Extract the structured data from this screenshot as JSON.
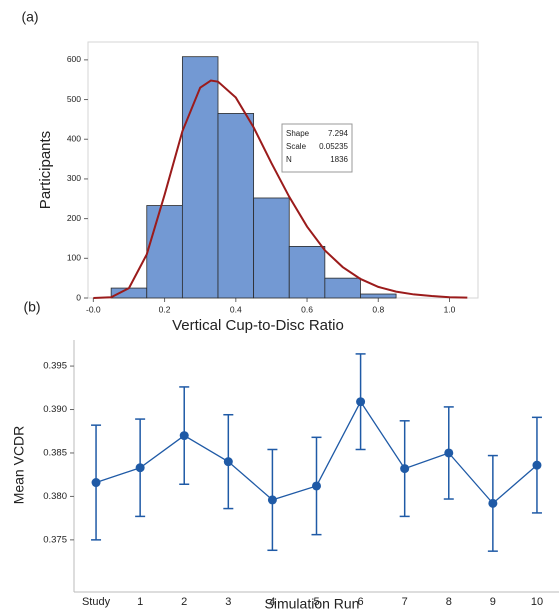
{
  "chart_data": [
    {
      "type": "histogram",
      "panel_label": "(a)",
      "x_label": "Vertical Cup-to-Disc Ratio",
      "y_label": "Participants",
      "bins": [
        0.05,
        0.15,
        0.25,
        0.35,
        0.45,
        0.55,
        0.65,
        0.75,
        0.85
      ],
      "values": [
        25,
        233,
        608,
        465,
        252,
        130,
        50,
        10
      ],
      "color": "#7399d3",
      "curve_color": "#9b1b1b",
      "fit": {
        "x": [
          0.0,
          0.05,
          0.1,
          0.15,
          0.2,
          0.25,
          0.3,
          0.33,
          0.35,
          0.4,
          0.45,
          0.5,
          0.55,
          0.6,
          0.65,
          0.7,
          0.75,
          0.8,
          0.85,
          0.9,
          0.95,
          1.0,
          1.05
        ],
        "y": [
          0,
          2,
          25,
          110,
          260,
          420,
          530,
          548,
          545,
          505,
          430,
          340,
          255,
          180,
          120,
          78,
          48,
          28,
          16,
          9,
          5,
          2,
          1
        ]
      },
      "fit_stats": [
        {
          "name": "Shape",
          "value": 7.294
        },
        {
          "name": "Scale",
          "value": 0.05235
        },
        {
          "name": "N",
          "value": 1836
        }
      ],
      "xlim": [
        -0.015,
        1.08
      ],
      "ylim": [
        0,
        645
      ],
      "xticks": [
        {
          "value": 0,
          "label": "-0.0"
        },
        0.2,
        0.4,
        0.6,
        0.8,
        {
          "value": 1,
          "label": "1.0"
        }
      ],
      "yticks": [
        0,
        100,
        200,
        300,
        400,
        500,
        600
      ]
    },
    {
      "type": "line",
      "panel_label": "(b)",
      "x_label": "Simulation Run",
      "y_label": "Mean VCDR",
      "categories": [
        "Study",
        "1",
        "2",
        "3",
        "4",
        "5",
        "6",
        "7",
        "8",
        "9",
        "10"
      ],
      "values": [
        0.3816,
        0.3833,
        0.387,
        0.384,
        0.3796,
        0.3812,
        0.3909,
        0.3832,
        0.385,
        0.3792,
        0.3836
      ],
      "errors": [
        0.0066,
        0.0056,
        0.0056,
        0.0054,
        0.0058,
        0.0056,
        0.0055,
        0.0055,
        0.0053,
        0.0055,
        0.0055
      ],
      "color": "#1f5aa6",
      "ylim": [
        0.369,
        0.398
      ],
      "yticks": [
        0.375,
        {
          "value": 0.38,
          "label": "0.380"
        },
        0.385,
        {
          "value": 0.39,
          "label": "0.390"
        },
        0.395
      ]
    }
  ]
}
